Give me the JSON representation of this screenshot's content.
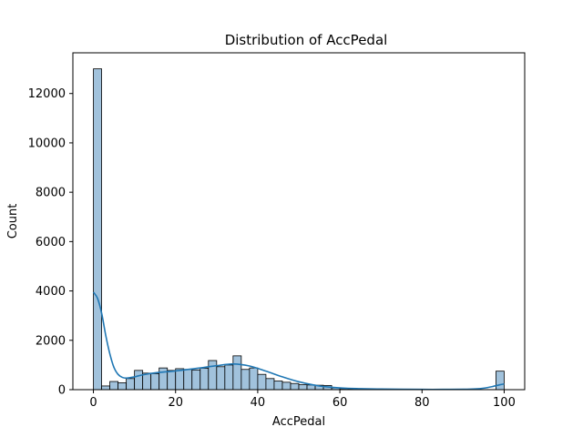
{
  "chart_data": {
    "type": "bar",
    "title": "Distribution of AccPedal",
    "xlabel": "AccPedal",
    "ylabel": "Count",
    "xlim": [
      -5,
      105
    ],
    "ylim": [
      0,
      13650
    ],
    "xticks": [
      0,
      20,
      40,
      60,
      80,
      100
    ],
    "yticks": [
      0,
      2000,
      4000,
      6000,
      8000,
      10000,
      12000
    ],
    "bin_width": 2,
    "bins_start": [
      0,
      2,
      4,
      6,
      8,
      10,
      12,
      14,
      16,
      18,
      20,
      22,
      24,
      26,
      28,
      30,
      32,
      34,
      36,
      38,
      40,
      42,
      44,
      46,
      48,
      50,
      52,
      54,
      56,
      58,
      60,
      62,
      64,
      66,
      68,
      70,
      72,
      74,
      76,
      78,
      80,
      82,
      84,
      86,
      88,
      90,
      92,
      94,
      96,
      98
    ],
    "values": [
      13000,
      150,
      330,
      280,
      450,
      780,
      670,
      650,
      880,
      780,
      850,
      820,
      800,
      870,
      1180,
      930,
      1000,
      1370,
      820,
      880,
      620,
      450,
      350,
      300,
      250,
      200,
      190,
      180,
      170,
      70,
      40,
      25,
      20,
      15,
      10,
      10,
      8,
      8,
      6,
      6,
      5,
      5,
      5,
      5,
      5,
      5,
      5,
      5,
      5,
      750
    ],
    "kde": {
      "x": [
        0,
        1,
        2,
        3,
        4,
        5,
        6,
        7,
        8,
        10,
        12,
        15,
        20,
        25,
        30,
        34,
        38,
        42,
        46,
        50,
        55,
        60,
        65,
        70,
        75,
        80,
        85,
        90,
        93,
        95,
        97,
        99,
        100
      ],
      "y": [
        3950,
        3700,
        3100,
        2200,
        1450,
        900,
        620,
        500,
        470,
        520,
        600,
        680,
        760,
        860,
        970,
        1040,
        960,
        750,
        520,
        320,
        150,
        70,
        40,
        25,
        15,
        10,
        10,
        15,
        30,
        60,
        120,
        200,
        230
      ]
    },
    "grid": false,
    "legend": "none",
    "colors": {
      "bar_fill": "#a1c2dc",
      "bar_edge": "#000000",
      "kde_line": "#1f77b4"
    }
  }
}
